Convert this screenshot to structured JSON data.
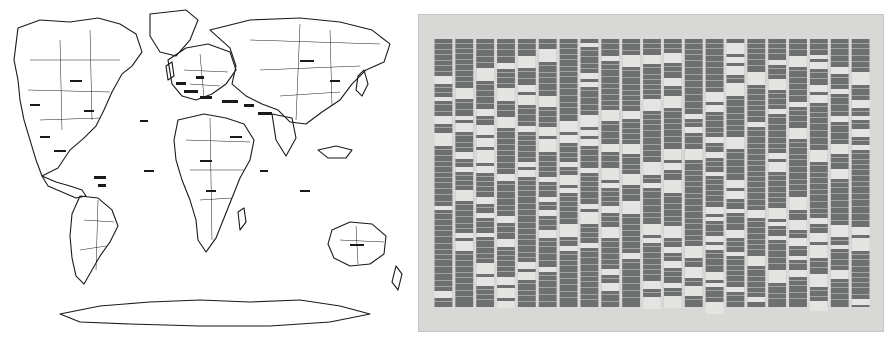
{
  "panels": [
    {
      "id": "world-map",
      "kind": "line-drawing-map"
    },
    {
      "id": "dna-sequencing-gel",
      "kind": "photograph"
    }
  ],
  "colors": {
    "map_ink": "#1a1a1a",
    "map_paper": "#ffffff",
    "gel_background": "#d8d8d6",
    "gel_band": "#6e6f6f",
    "gel_band_light": "#e4e4e2"
  },
  "gel": {
    "lane_count": 21
  }
}
